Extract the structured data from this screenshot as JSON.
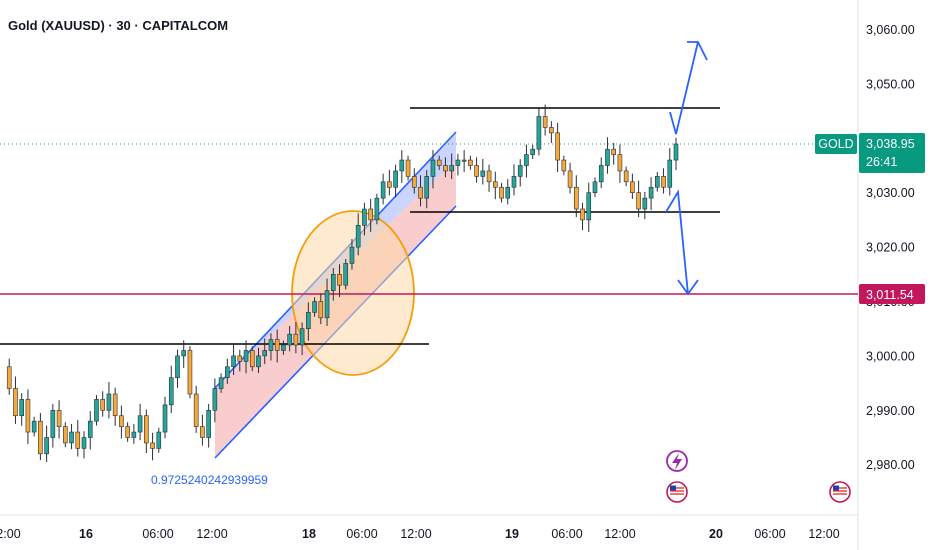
{
  "header": {
    "title": "Gold (XAUUSD) · 30 · CAPITALCOM"
  },
  "annotations": {
    "channel_label": "0.9725240242939959"
  },
  "price_badges": {
    "symbol": "GOLD",
    "current_price": "3,038.95",
    "countdown": "26:41",
    "level_price": "3,011.54"
  },
  "colors": {
    "up": "#26a69a",
    "down": "#f6a93b",
    "wick": "#2a2e39",
    "level_line": "#c2185b",
    "current_badge": "#089981",
    "channel_line": "#2962ff",
    "arrow": "#2962ff",
    "ellipse_stroke": "#f59e0b",
    "label_blue": "#2962ff",
    "event_purple": "#9c27b0"
  },
  "icons": {
    "event_icon": "lightning-icon",
    "flag_icon": "us-flag-icon"
  },
  "chart_data": {
    "type": "candlestick",
    "title": "Gold (XAUUSD) · 30 · CAPITALCOM",
    "ylim": [
      2974,
      3066
    ],
    "y_ticks": [
      "2,980.00",
      "2,990.00",
      "3,000.00",
      "3,010.00",
      "3,020.00",
      "3,030.00",
      "3,040.00",
      "3,050.00",
      "3,060.00"
    ],
    "x_ticks": [
      {
        "label": "12:00",
        "bold": false
      },
      {
        "label": "16",
        "bold": true
      },
      {
        "label": "06:00",
        "bold": false
      },
      {
        "label": "12:00",
        "bold": false
      },
      {
        "label": "18",
        "bold": true
      },
      {
        "label": "06:00",
        "bold": false
      },
      {
        "label": "12:00",
        "bold": false
      },
      {
        "label": "19",
        "bold": true
      },
      {
        "label": "06:00",
        "bold": false
      },
      {
        "label": "12:00",
        "bold": false
      },
      {
        "label": "20",
        "bold": true
      },
      {
        "label": "06:00",
        "bold": false
      },
      {
        "label": "12:00",
        "bold": false
      }
    ],
    "current_price": 3038.95,
    "horizontal_levels": [
      {
        "value": 3011.54,
        "style": "price-line"
      },
      {
        "value": 3045.0,
        "style": "resistance"
      },
      {
        "value": 3026.5,
        "style": "support"
      },
      {
        "value": 3002.8,
        "style": "support"
      }
    ],
    "price_path": [
      2998,
      2994,
      2989,
      2992,
      2986,
      2988,
      2982,
      2985,
      2990,
      2987,
      2984,
      2986,
      2983,
      2985,
      2988,
      2992,
      2990,
      2993,
      2989,
      2987,
      2985,
      2986,
      2989,
      2984,
      2983,
      2986,
      2991,
      2996,
      3000,
      3001,
      2993,
      2987,
      2985,
      2990,
      2994,
      2996,
      2998,
      3000,
      2999,
      3001,
      2998,
      3000,
      3001,
      3003,
      3001,
      3002,
      3004,
      3002,
      3005,
      3008,
      3010,
      3007,
      3012,
      3015,
      3013,
      3017,
      3020,
      3024,
      3027,
      3025,
      3029,
      3032,
      3031,
      3034,
      3036,
      3033,
      3031,
      3029,
      3033,
      3036,
      3035,
      3034,
      3035,
      3036,
      3036,
      3035,
      3033,
      3034,
      3032,
      3031,
      3029,
      3031,
      3033,
      3035,
      3037,
      3038,
      3044,
      3042,
      3041,
      3036,
      3034,
      3031,
      3027,
      3025,
      3030,
      3032,
      3035,
      3038,
      3037,
      3034,
      3032,
      3030,
      3027,
      3029,
      3031,
      3033,
      3031,
      3036,
      3038.95
    ]
  }
}
